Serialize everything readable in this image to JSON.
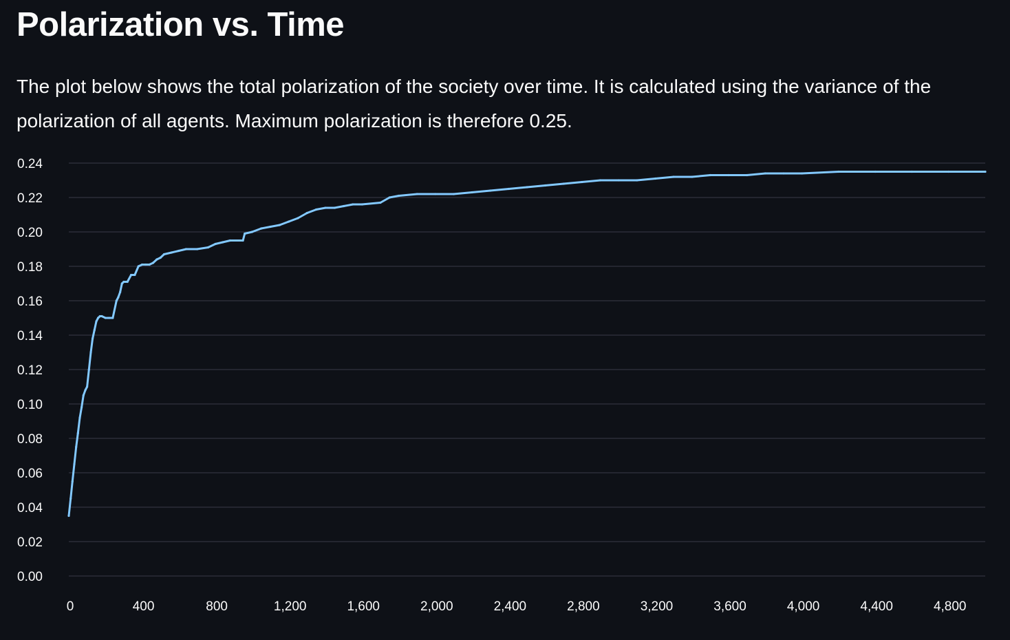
{
  "page": {
    "title": "Polarization vs. Time",
    "description": "The plot below shows the total polarization of the society over time. It is calculated using the variance of the polarization of all agents. Maximum polarization is therefore 0.25."
  },
  "colors": {
    "background": "#0e1117",
    "text": "#fafafa",
    "grid": "#31333f",
    "line": "#83c9ff"
  },
  "chart_data": {
    "type": "line",
    "title": "",
    "xlabel": "",
    "ylabel": "",
    "xlim": [
      0,
      5000
    ],
    "ylim": [
      0,
      0.24
    ],
    "grid": "horizontal",
    "x_ticks": [
      0,
      400,
      800,
      1200,
      1600,
      2000,
      2400,
      2800,
      3200,
      3600,
      4000,
      4400,
      4800
    ],
    "x_tick_labels": [
      "0",
      "400",
      "800",
      "1,200",
      "1,600",
      "2,000",
      "2,400",
      "2,800",
      "3,200",
      "3,600",
      "4,000",
      "4,400",
      "4,800"
    ],
    "y_ticks": [
      0,
      0.02,
      0.04,
      0.06,
      0.08,
      0.1,
      0.12,
      0.14,
      0.16,
      0.18,
      0.2,
      0.22,
      0.24
    ],
    "y_tick_labels": [
      "0.00",
      "0.02",
      "0.04",
      "0.06",
      "0.08",
      "0.10",
      "0.12",
      "0.14",
      "0.16",
      "0.18",
      "0.20",
      "0.22",
      "0.24"
    ],
    "series": [
      {
        "color": "#83c9ff",
        "x": [
          0,
          10,
          20,
          30,
          40,
          50,
          60,
          70,
          80,
          90,
          100,
          110,
          120,
          130,
          140,
          150,
          160,
          170,
          180,
          200,
          220,
          240,
          260,
          270,
          280,
          290,
          300,
          320,
          340,
          360,
          380,
          400,
          420,
          440,
          460,
          480,
          500,
          520,
          560,
          600,
          640,
          700,
          760,
          800,
          840,
          880,
          950,
          960,
          1000,
          1050,
          1100,
          1150,
          1200,
          1250,
          1300,
          1350,
          1400,
          1450,
          1500,
          1550,
          1600,
          1700,
          1750,
          1800,
          1900,
          2000,
          2100,
          2200,
          2300,
          2400,
          2500,
          2600,
          2700,
          2800,
          2900,
          3000,
          3100,
          3200,
          3300,
          3400,
          3500,
          3600,
          3700,
          3800,
          3900,
          4000,
          4200,
          4400,
          4600,
          4800,
          5000
        ],
        "y": [
          0.035,
          0.045,
          0.055,
          0.065,
          0.075,
          0.083,
          0.092,
          0.098,
          0.105,
          0.108,
          0.11,
          0.12,
          0.13,
          0.138,
          0.143,
          0.148,
          0.15,
          0.151,
          0.151,
          0.15,
          0.15,
          0.15,
          0.16,
          0.162,
          0.165,
          0.17,
          0.171,
          0.171,
          0.175,
          0.175,
          0.18,
          0.181,
          0.181,
          0.181,
          0.182,
          0.184,
          0.185,
          0.187,
          0.188,
          0.189,
          0.19,
          0.19,
          0.191,
          0.193,
          0.194,
          0.195,
          0.195,
          0.199,
          0.2,
          0.202,
          0.203,
          0.204,
          0.206,
          0.208,
          0.211,
          0.213,
          0.214,
          0.214,
          0.215,
          0.216,
          0.216,
          0.217,
          0.22,
          0.221,
          0.222,
          0.222,
          0.222,
          0.223,
          0.224,
          0.225,
          0.226,
          0.227,
          0.228,
          0.229,
          0.23,
          0.23,
          0.23,
          0.231,
          0.232,
          0.232,
          0.233,
          0.233,
          0.233,
          0.234,
          0.234,
          0.234,
          0.235,
          0.235,
          0.235,
          0.235,
          0.235
        ]
      }
    ]
  }
}
